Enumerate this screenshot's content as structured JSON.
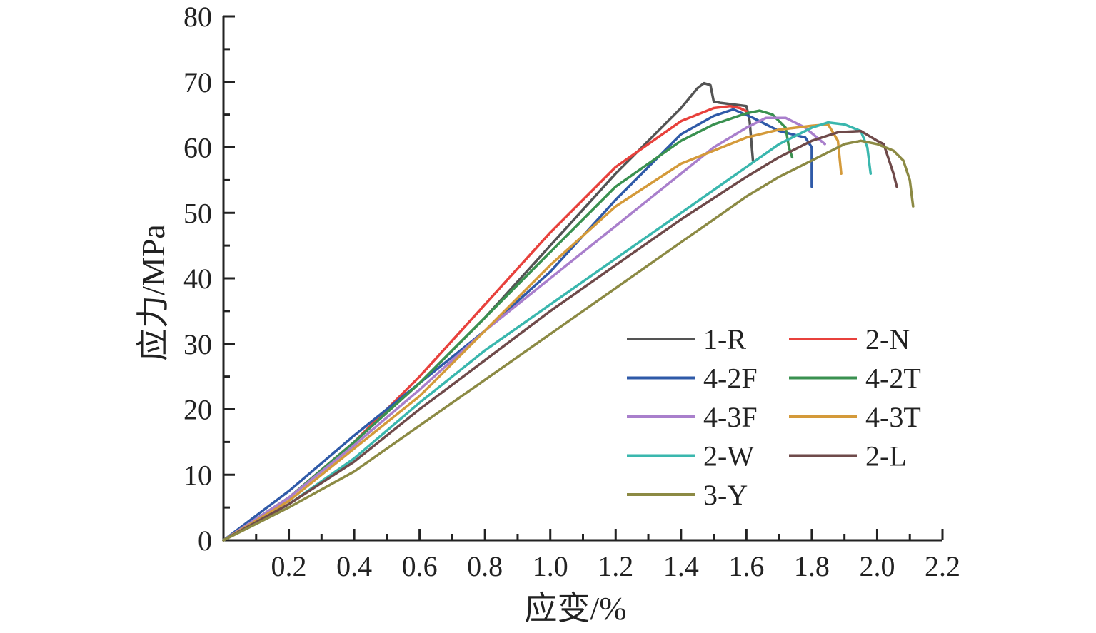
{
  "chart_data": {
    "type": "line",
    "xlabel": "应变/%",
    "ylabel": "应力/MPa",
    "xlim": [
      0,
      2.2
    ],
    "ylim": [
      0,
      80
    ],
    "xticks": [
      0.2,
      0.4,
      0.6,
      0.8,
      1.0,
      1.2,
      1.4,
      1.6,
      1.8,
      2.0,
      2.2
    ],
    "xtick_labels": [
      "0.2",
      "0.4",
      "0.6",
      "0.8",
      "1.0",
      "1.2",
      "1.4",
      "1.6",
      "1.8",
      "2.0",
      "2.2"
    ],
    "yticks": [
      0,
      10,
      20,
      30,
      40,
      50,
      60,
      70,
      80
    ],
    "ytick_labels": [
      "0",
      "10",
      "20",
      "30",
      "40",
      "50",
      "60",
      "70",
      "80"
    ],
    "grid": false,
    "legend_position": "lower-right",
    "legend_columns": 2,
    "series": [
      {
        "name": "1-R",
        "color": "#545454",
        "x": [
          0,
          0.2,
          0.4,
          0.6,
          0.8,
          1.0,
          1.2,
          1.4,
          1.45,
          1.47,
          1.49,
          1.5,
          1.52,
          1.6,
          1.61,
          1.62
        ],
        "y": [
          0,
          6.5,
          15,
          24,
          34,
          45,
          56,
          66,
          69,
          69.8,
          69.5,
          67,
          66.8,
          66.3,
          64,
          58
        ]
      },
      {
        "name": "2-N",
        "color": "#e8413c",
        "x": [
          0,
          0.2,
          0.4,
          0.6,
          0.8,
          1.0,
          1.2,
          1.4,
          1.5,
          1.55,
          1.58,
          1.6
        ],
        "y": [
          0,
          6.5,
          15,
          25,
          36,
          47,
          57,
          64,
          66,
          66.3,
          66,
          65.5
        ]
      },
      {
        "name": "4-2F",
        "color": "#2f5aa8",
        "x": [
          0,
          0.2,
          0.4,
          0.6,
          0.8,
          1.0,
          1.2,
          1.4,
          1.5,
          1.56,
          1.62,
          1.7,
          1.78,
          1.8,
          1.8
        ],
        "y": [
          0,
          7.5,
          16,
          24,
          32,
          41,
          52,
          62,
          64.8,
          65.8,
          64.5,
          62.5,
          61.5,
          60,
          54
        ]
      },
      {
        "name": "4-2T",
        "color": "#3a9150",
        "x": [
          0,
          0.2,
          0.4,
          0.6,
          0.8,
          1.0,
          1.2,
          1.4,
          1.5,
          1.6,
          1.64,
          1.68,
          1.72,
          1.73,
          1.74
        ],
        "y": [
          0,
          6.5,
          15,
          24,
          34,
          44,
          54,
          61,
          63.5,
          65.2,
          65.6,
          65,
          63,
          60,
          58.5
        ]
      },
      {
        "name": "4-3F",
        "color": "#a97fcc",
        "x": [
          0,
          0.2,
          0.4,
          0.6,
          0.8,
          1.0,
          1.2,
          1.4,
          1.5,
          1.6,
          1.66,
          1.72,
          1.78,
          1.84
        ],
        "y": [
          0,
          6.5,
          14.5,
          23,
          32,
          40,
          48,
          56,
          60,
          63,
          64.5,
          64.5,
          63,
          60.5
        ]
      },
      {
        "name": "4-3T",
        "color": "#d49a3a",
        "x": [
          0,
          0.2,
          0.4,
          0.6,
          0.8,
          1.0,
          1.2,
          1.4,
          1.6,
          1.7,
          1.8,
          1.85,
          1.88,
          1.89
        ],
        "y": [
          0,
          6,
          14,
          22,
          32,
          42,
          51,
          57.5,
          61.5,
          62.7,
          63.3,
          63.5,
          61,
          56
        ]
      },
      {
        "name": "2-W",
        "color": "#3ab7ae",
        "x": [
          0,
          0.2,
          0.4,
          0.6,
          0.8,
          1.0,
          1.2,
          1.4,
          1.6,
          1.7,
          1.8,
          1.85,
          1.9,
          1.95,
          1.97,
          1.98
        ],
        "y": [
          0,
          5.5,
          12.5,
          21,
          29,
          36,
          43,
          50,
          57,
          60.5,
          63,
          63.8,
          63.5,
          62.5,
          60,
          56
        ]
      },
      {
        "name": "2-L",
        "color": "#6f4a4a",
        "x": [
          0,
          0.2,
          0.4,
          0.6,
          0.8,
          1.0,
          1.2,
          1.4,
          1.6,
          1.7,
          1.8,
          1.88,
          1.95,
          2.0,
          2.02,
          2.05,
          2.06
        ],
        "y": [
          0,
          5.5,
          12,
          20,
          27.5,
          35,
          42,
          49,
          55.5,
          58.5,
          61,
          62.3,
          62.5,
          61,
          60.5,
          56,
          54
        ]
      },
      {
        "name": "3-Y",
        "color": "#8c8a44",
        "x": [
          0,
          0.2,
          0.4,
          0.6,
          0.8,
          1.0,
          1.2,
          1.4,
          1.6,
          1.7,
          1.8,
          1.9,
          1.95,
          2.0,
          2.05,
          2.08,
          2.1,
          2.11
        ],
        "y": [
          0,
          5,
          10.5,
          17.5,
          24.5,
          31.5,
          38.5,
          45.5,
          52.5,
          55.5,
          58,
          60.5,
          61,
          60.5,
          59.5,
          58,
          55,
          51
        ]
      }
    ]
  }
}
